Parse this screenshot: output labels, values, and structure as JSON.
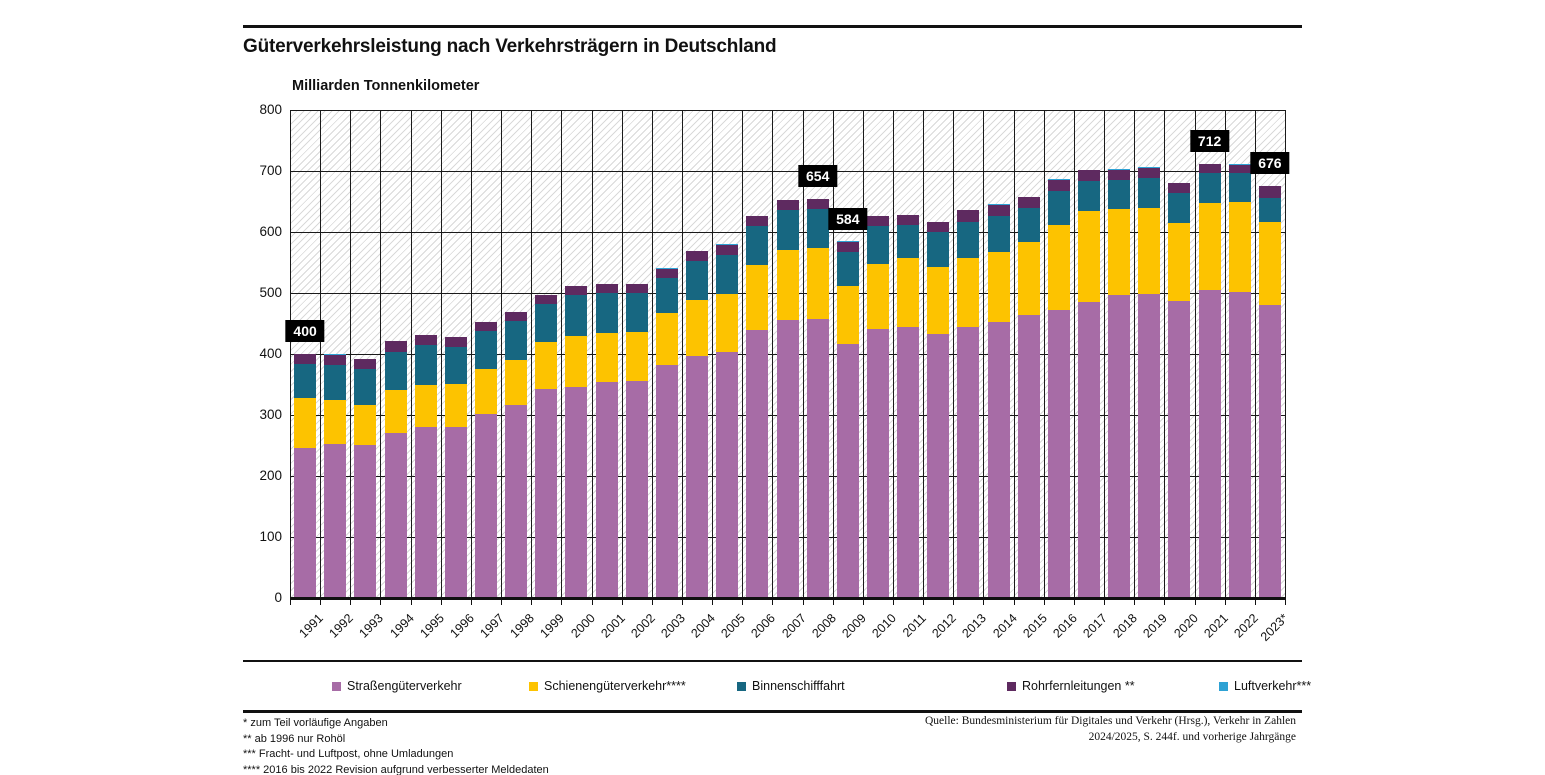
{
  "header": {
    "title": "Güterverkehrsleistung nach Verkehrsträgern in Deutschland",
    "unit_label": "Milliarden Tonnenkilometer"
  },
  "chart_data": {
    "type": "bar",
    "stacked": true,
    "title": "Güterverkehrsleistung nach Verkehrsträgern in Deutschland",
    "ylabel": "Milliarden Tonnenkilometer",
    "ylim": [
      0,
      800
    ],
    "y_ticks": [
      0,
      100,
      200,
      300,
      400,
      500,
      600,
      700,
      800
    ],
    "grid": true,
    "legend_position": "bottom",
    "categories": [
      "1991",
      "1992",
      "1993",
      "1994",
      "1995",
      "1996",
      "1997",
      "1998",
      "1999",
      "2000",
      "2001",
      "2002",
      "2003",
      "2004",
      "2005",
      "2006",
      "2007",
      "2008",
      "2009",
      "2010",
      "2011",
      "2012",
      "2013",
      "2014",
      "2015",
      "2016",
      "2017",
      "2018",
      "2019",
      "2020",
      "2021",
      "2022",
      "2023*"
    ],
    "series": [
      {
        "name": "Straßengüterverkehr",
        "color": "#a76ca6",
        "values": [
          246,
          252,
          251,
          270,
          280,
          281,
          302,
          316,
          342,
          346,
          354,
          355,
          382,
          397,
          403,
          439,
          456,
          458,
          416,
          441,
          444,
          432,
          444,
          452,
          464,
          472,
          485,
          496,
          498,
          487,
          505,
          502,
          480
        ]
      },
      {
        "name": "Schienengüterverkehr****",
        "color": "#fdc300",
        "values": [
          82,
          73,
          66,
          71,
          70,
          70,
          73,
          74,
          77,
          83,
          81,
          81,
          85,
          92,
          95,
          107,
          115,
          116,
          96,
          107,
          113,
          110,
          114,
          116,
          119,
          140,
          150,
          142,
          141,
          128,
          143,
          147,
          136
        ]
      },
      {
        "name": "Binnenschifffahrt",
        "color": "#176781",
        "values": [
          56,
          57,
          58,
          62,
          64,
          61,
          62,
          64,
          63,
          67,
          65,
          64,
          58,
          64,
          64,
          64,
          65,
          64,
          56,
          62,
          55,
          58,
          59,
          59,
          56,
          56,
          48,
          47,
          49,
          49,
          48,
          47,
          39
        ]
      },
      {
        "name": "Rohrfernleitungen **",
        "color": "#5e2a60",
        "values": [
          16,
          17,
          17,
          18,
          17,
          16,
          15,
          15,
          14,
          15,
          15,
          15,
          15,
          16,
          17,
          16,
          16,
          16,
          16,
          16,
          16,
          16,
          19,
          18,
          18,
          18,
          18,
          17,
          17,
          16,
          15,
          14,
          20
        ]
      },
      {
        "name": "Luftverkehr***",
        "color": "#2ea2d4",
        "values": [
          0.4,
          0.4,
          0.4,
          0.5,
          0.5,
          0.5,
          0.5,
          0.5,
          0.5,
          0.5,
          0.5,
          0.5,
          0.6,
          0.6,
          0.6,
          0.6,
          0.6,
          0.7,
          0.6,
          0.7,
          0.7,
          0.7,
          0.7,
          0.7,
          0.7,
          0.8,
          0.9,
          0.9,
          0.9,
          0.9,
          1.0,
          1.0,
          1.0
        ]
      }
    ],
    "annotations": [
      {
        "category": "1991",
        "value": 400
      },
      {
        "category": "2008",
        "value": 654
      },
      {
        "category": "2009",
        "value": 584
      },
      {
        "category": "2021",
        "value": 712
      },
      {
        "category": "2023*",
        "value": 676
      }
    ]
  },
  "footnotes": [
    "* zum Teil vorläufige Angaben",
    "** ab 1996 nur Rohöl",
    "*** Fracht- und Luftpost, ohne Umladungen",
    "**** 2016 bis 2022 Revision aufgrund verbesserter Meldedaten"
  ],
  "source": {
    "line1": "Quelle: Bundesministerium für Digitales und Verkehr (Hrsg.), Verkehr in Zahlen",
    "line2": "2024/2025, S. 244f. und vorherige Jahrgänge"
  }
}
